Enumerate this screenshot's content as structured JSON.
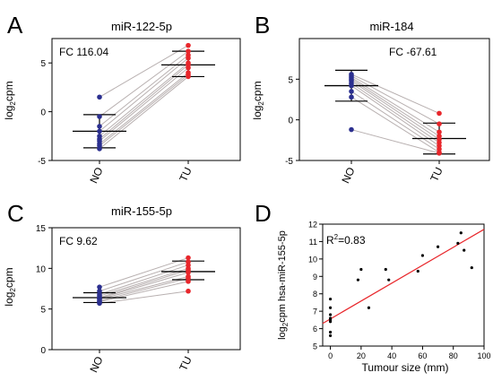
{
  "panels": [
    {
      "letter": "A",
      "title": "miR-122-5p",
      "annotation": "FC 116.04"
    },
    {
      "letter": "B",
      "title": "miR-184",
      "annotation": "FC -67.61"
    },
    {
      "letter": "C",
      "title": "miR-155-5p",
      "annotation": "FC 9.62"
    },
    {
      "letter": "D",
      "title": "",
      "annotation": "R²=0.83"
    }
  ],
  "colors": {
    "NO": "#2b2f8f",
    "TU": "#e8262b",
    "line": "#b8b0b0",
    "fit": "#e8262b"
  },
  "chart_data": [
    {
      "type": "scatter",
      "subtype": "paired-dot",
      "title": "miR-122-5p",
      "ylabel": "log2cpm",
      "categories": [
        "NO",
        "TU"
      ],
      "ylim": [
        -5,
        7.5
      ],
      "yticks": [
        -5,
        0,
        5
      ],
      "annotation": "FC 116.04",
      "NO": [
        1.5,
        -0.5,
        -1.5,
        -2.0,
        -2.5,
        -2.8,
        -3.0,
        -3.3,
        -3.5,
        -3.8
      ],
      "TU": [
        6.8,
        6.2,
        5.8,
        5.5,
        5.0,
        4.8,
        4.5,
        4.0,
        3.8,
        3.6
      ],
      "NO_mean_sd": [
        -2.0,
        -0.3,
        -3.7
      ],
      "TU_mean_sd": [
        4.8,
        6.2,
        3.6
      ]
    },
    {
      "type": "scatter",
      "subtype": "paired-dot",
      "title": "miR-184",
      "ylabel": "log2cpm",
      "categories": [
        "NO",
        "TU"
      ],
      "ylim": [
        -5,
        10
      ],
      "yticks": [
        -5,
        0,
        5
      ],
      "annotation": "FC -67.61",
      "NO": [
        5.6,
        5.4,
        5.2,
        5.0,
        4.8,
        4.5,
        4.2,
        3.5,
        2.8,
        -1.2
      ],
      "TU": [
        0.8,
        -0.5,
        -1.5,
        -2.0,
        -2.4,
        -2.8,
        -3.2,
        -3.6,
        -4.0,
        -4.1
      ],
      "NO_mean_sd": [
        4.2,
        6.1,
        2.3
      ],
      "TU_mean_sd": [
        -2.3,
        -0.4,
        -4.2
      ]
    },
    {
      "type": "scatter",
      "subtype": "paired-dot",
      "title": "miR-155-5p",
      "ylabel": "log2cpm",
      "categories": [
        "NO",
        "TU"
      ],
      "ylim": [
        0,
        15
      ],
      "yticks": [
        0,
        5,
        10,
        15
      ],
      "annotation": "FC 9.62",
      "NO": [
        7.7,
        7.2,
        6.8,
        6.6,
        6.4,
        6.3,
        6.2,
        6.0,
        5.9,
        5.7
      ],
      "TU": [
        11.3,
        10.8,
        10.4,
        10.0,
        9.8,
        9.5,
        9.0,
        8.8,
        8.4,
        7.2
      ],
      "NO_mean_sd": [
        6.4,
        7.0,
        5.8
      ],
      "TU_mean_sd": [
        9.6,
        10.9,
        8.6
      ]
    },
    {
      "type": "scatter",
      "xlabel": "Tumour size (mm)",
      "ylabel": "log2cpm hsa-miR-155-5p",
      "xlim": [
        -5,
        100
      ],
      "ylim": [
        5,
        12
      ],
      "xticks": [
        0,
        20,
        40,
        60,
        80,
        100
      ],
      "yticks": [
        5,
        6,
        7,
        8,
        9,
        10,
        11,
        12
      ],
      "annotation": "R²=0.83",
      "points": [
        [
          0,
          5.6
        ],
        [
          0,
          5.8
        ],
        [
          0,
          6.4
        ],
        [
          0,
          6.5
        ],
        [
          0,
          6.6
        ],
        [
          0,
          6.8
        ],
        [
          0,
          7.2
        ],
        [
          0,
          7.7
        ],
        [
          18,
          8.8
        ],
        [
          20,
          9.4
        ],
        [
          25,
          7.2
        ],
        [
          36,
          9.4
        ],
        [
          38,
          8.8
        ],
        [
          57,
          9.3
        ],
        [
          60,
          10.2
        ],
        [
          70,
          10.7
        ],
        [
          83,
          10.9
        ],
        [
          85,
          11.5
        ],
        [
          87,
          10.5
        ],
        [
          92,
          9.5
        ]
      ],
      "fit": {
        "x": [
          -5,
          100
        ],
        "y": [
          6.3,
          11.7
        ]
      }
    }
  ]
}
